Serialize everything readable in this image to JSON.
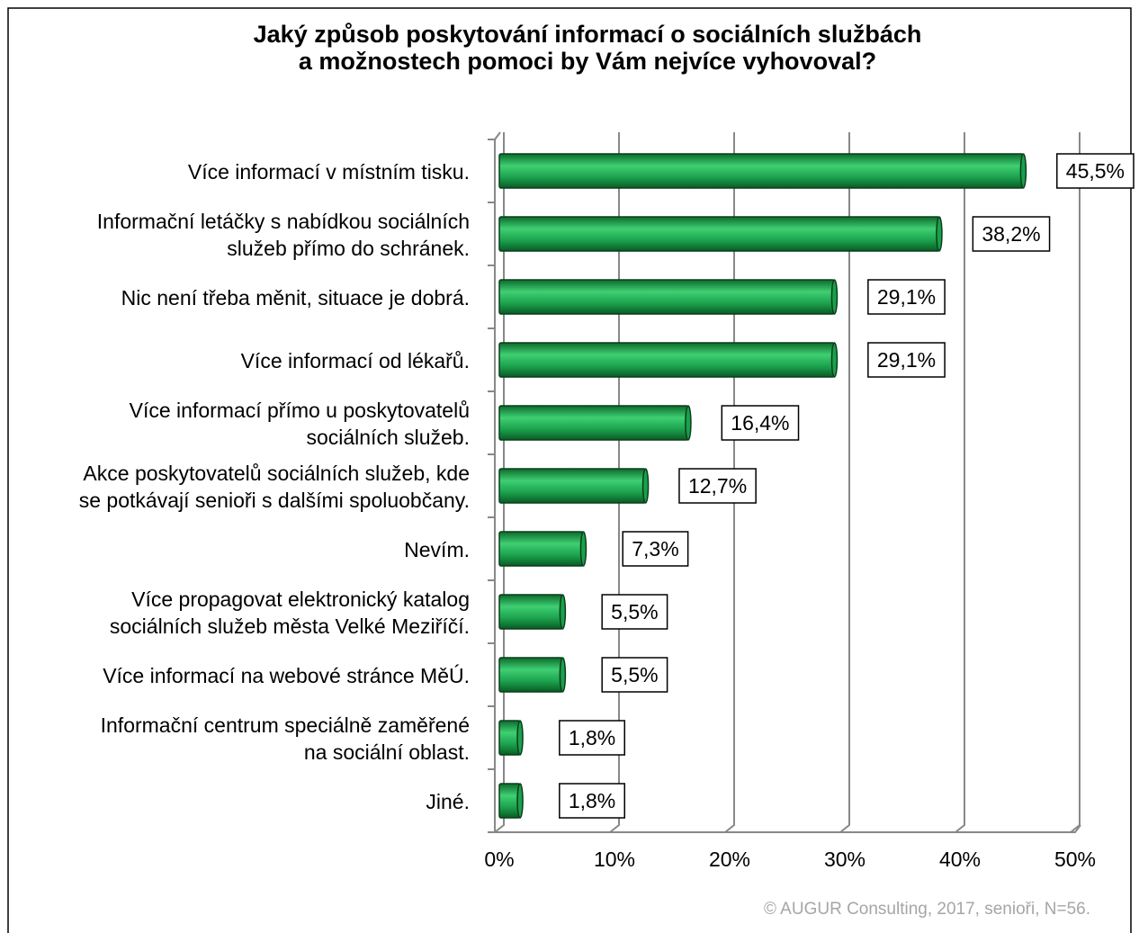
{
  "chart_data": {
    "type": "bar",
    "orientation": "horizontal",
    "title": "Jaký způsob poskytování informací o sociálních službách\na možnostech pomoci by Vám nejvíce vyhovoval?",
    "categories": [
      "Více informací v místním tisku.",
      "Informační letáčky s nabídkou sociálních\nslužeb přímo do schránek.",
      "Nic není třeba měnit, situace je dobrá.",
      "Více informací od lékařů.",
      "Více informací přímo u poskytovatelů\nsociálních služeb.",
      "Akce poskytovatelů sociálních služeb, kde\nse potkávají senioři s dalšími spoluobčany.",
      "Nevím.",
      "Více propagovat elektronický katalog\nsociálních služeb města Velké Meziříčí.",
      "Více informací na webové stránce MěÚ.",
      "Informační centrum speciálně zaměřené\nna sociální oblast.",
      "Jiné."
    ],
    "values": [
      45.5,
      38.2,
      29.1,
      29.1,
      16.4,
      12.7,
      7.3,
      5.5,
      5.5,
      1.8,
      1.8
    ],
    "value_labels": [
      "45,5%",
      "38,2%",
      "29,1%",
      "29,1%",
      "16,4%",
      "12,7%",
      "7,3%",
      "5,5%",
      "5,5%",
      "1,8%",
      "1,8%"
    ],
    "color": "#1aa04c",
    "xlim": [
      0,
      50
    ],
    "xticks": [
      {
        "value": 0,
        "label": "0%"
      },
      {
        "value": 10,
        "label": "10%"
      },
      {
        "value": 20,
        "label": "20%"
      },
      {
        "value": 30,
        "label": "30%"
      },
      {
        "value": 40,
        "label": "40%"
      },
      {
        "value": 50,
        "label": "50%"
      }
    ],
    "grid": true,
    "footnote": "© AUGUR Consulting, 2017, senioři, N=56."
  }
}
